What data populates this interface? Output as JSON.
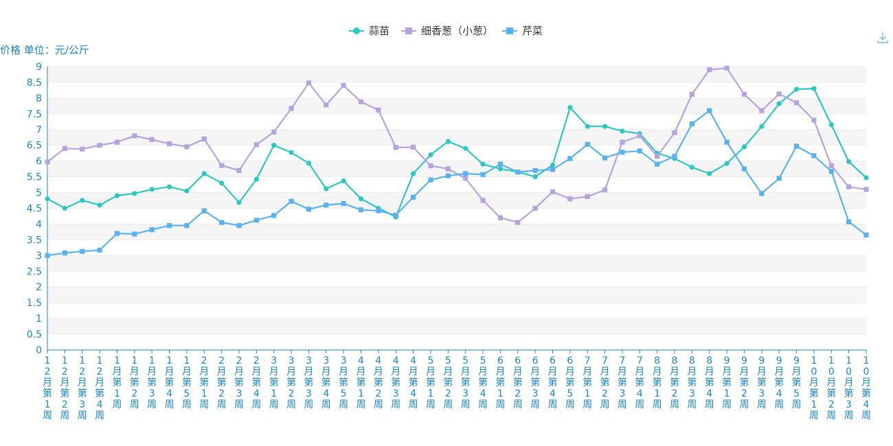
{
  "toolbar": {
    "download_icon": "download-icon"
  },
  "chart_data": {
    "type": "line",
    "ylabel": "价格 单位：元/公斤",
    "ylim": [
      0,
      9
    ],
    "yticks": [
      "0",
      "0.5",
      "1",
      "1.5",
      "2",
      "2.5",
      "3",
      "3.5",
      "4",
      "4.5",
      "5",
      "5.5",
      "6",
      "6.5",
      "7",
      "7.5",
      "8",
      "8.5",
      "9"
    ],
    "grid": true,
    "legend_position": "top-center",
    "categories": [
      "12月第1周",
      "12月第2周",
      "12月第3周",
      "12月第4周",
      "1月第1周",
      "1月第2周",
      "1月第3周",
      "1月第4周",
      "1月第5周",
      "2月第1周",
      "2月第2周",
      "2月第3周",
      "2月第4周",
      "3月第1周",
      "3月第2周",
      "3月第3周",
      "3月第4周",
      "3月第5周",
      "4月第1周",
      "4月第2周",
      "4月第3周",
      "4月第4周",
      "5月第1周",
      "5月第2周",
      "5月第3周",
      "5月第4周",
      "6月第1周",
      "6月第2周",
      "6月第3周",
      "6月第4周",
      "6月第5周",
      "7月第1周",
      "7月第2周",
      "7月第3周",
      "7月第4周",
      "8月第1周",
      "8月第2周",
      "8月第3周",
      "8月第4周",
      "9月第1周",
      "9月第2周",
      "9月第3周",
      "9月第4周",
      "9月第5周",
      "10月第1周",
      "10月第2周",
      "10月第3周",
      "10月第4周"
    ],
    "series": [
      {
        "name": "蒜苗",
        "marker": "circle",
        "color": "#2ec7c0",
        "values": [
          4.8,
          4.5,
          4.75,
          4.6,
          4.9,
          4.97,
          5.1,
          5.18,
          5.05,
          5.6,
          5.3,
          4.68,
          5.42,
          6.5,
          6.27,
          5.93,
          5.12,
          5.37,
          4.8,
          4.5,
          4.22,
          5.6,
          6.2,
          6.62,
          6.4,
          5.9,
          5.75,
          5.65,
          5.5,
          5.87,
          7.7,
          7.1,
          7.1,
          6.95,
          6.87,
          6.25,
          6.08,
          5.8,
          5.6,
          5.92,
          6.45,
          7.1,
          7.82,
          8.28,
          8.3,
          7.15,
          5.98,
          5.47
        ]
      },
      {
        "name": "细香葱（小葱）",
        "marker": "square",
        "color": "#b6a2de",
        "values": [
          5.97,
          6.4,
          6.38,
          6.5,
          6.6,
          6.8,
          6.68,
          6.55,
          6.45,
          6.7,
          5.86,
          5.7,
          6.52,
          6.92,
          7.67,
          8.48,
          7.78,
          8.4,
          7.88,
          7.62,
          6.43,
          6.44,
          5.85,
          5.75,
          5.45,
          4.75,
          4.2,
          4.05,
          4.5,
          5.02,
          4.8,
          4.87,
          5.08,
          6.6,
          6.8,
          6.15,
          6.9,
          8.12,
          8.9,
          8.95,
          8.12,
          7.6,
          8.13,
          7.85,
          7.3,
          5.85,
          5.18,
          5.1
        ]
      },
      {
        "name": "芹菜",
        "marker": "square",
        "color": "#5ab1ef",
        "values": [
          3.0,
          3.08,
          3.13,
          3.17,
          3.7,
          3.68,
          3.82,
          3.95,
          3.95,
          4.42,
          4.05,
          3.95,
          4.12,
          4.27,
          4.72,
          4.47,
          4.6,
          4.65,
          4.45,
          4.42,
          4.28,
          4.85,
          5.4,
          5.53,
          5.6,
          5.57,
          5.9,
          5.65,
          5.7,
          5.73,
          6.08,
          6.53,
          6.1,
          6.28,
          6.32,
          5.9,
          6.15,
          7.18,
          7.6,
          6.6,
          5.75,
          4.97,
          5.45,
          6.47,
          6.17,
          5.67,
          4.07,
          3.65
        ]
      }
    ]
  }
}
